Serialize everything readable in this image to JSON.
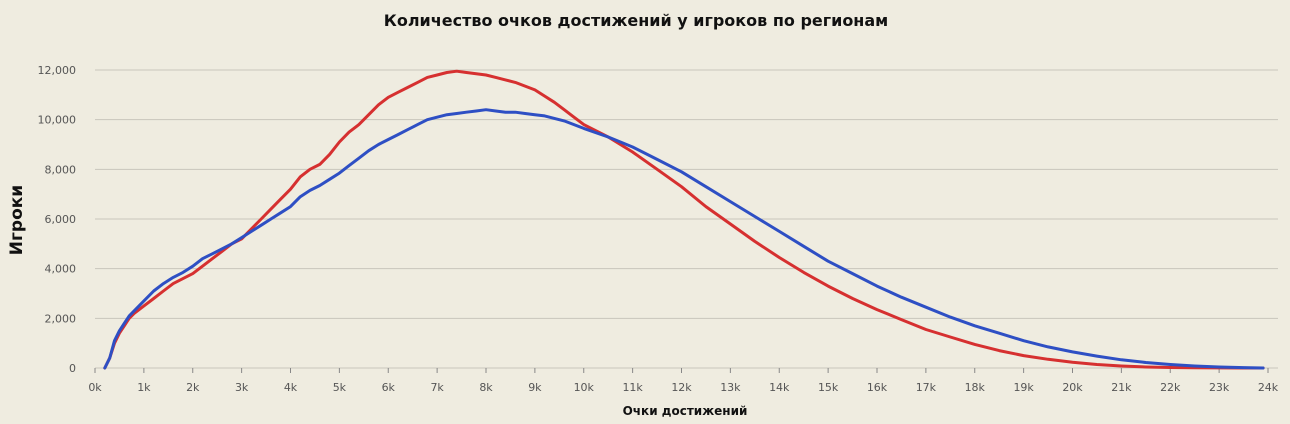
{
  "chart_data": {
    "type": "line",
    "title": "Количество очков достижений у игроков по регионам",
    "xlabel": "Очки достижений",
    "ylabel": "Игроки",
    "xlim": [
      0,
      24000
    ],
    "ylim": [
      0,
      12000
    ],
    "grid": true,
    "x_ticks": [
      "0k",
      "1k",
      "2k",
      "3k",
      "4k",
      "5k",
      "6k",
      "7k",
      "8k",
      "9k",
      "10k",
      "11k",
      "12k",
      "13k",
      "14k",
      "15k",
      "16k",
      "17k",
      "18k",
      "19k",
      "20k",
      "21k",
      "22k",
      "23k",
      "24k"
    ],
    "y_ticks": [
      "0",
      "2,000",
      "4,000",
      "6,000",
      "8,000",
      "10,000",
      "12,000"
    ],
    "x": [
      200,
      300,
      400,
      500,
      600,
      700,
      800,
      1000,
      1200,
      1400,
      1600,
      1800,
      2000,
      2200,
      2400,
      2600,
      2800,
      3000,
      3200,
      3400,
      3600,
      3800,
      4000,
      4200,
      4400,
      4600,
      4800,
      5000,
      5200,
      5400,
      5600,
      5800,
      6000,
      6200,
      6400,
      6600,
      6800,
      7000,
      7200,
      7400,
      7600,
      7800,
      8000,
      8200,
      8400,
      8600,
      8800,
      9000,
      9200,
      9400,
      9600,
      9800,
      10000,
      10500,
      11000,
      11500,
      12000,
      12500,
      13000,
      13500,
      14000,
      14500,
      15000,
      15500,
      16000,
      16500,
      17000,
      17500,
      18000,
      18500,
      19000,
      19500,
      20000,
      20500,
      21000,
      21500,
      22000,
      22500,
      23000,
      23500,
      23900
    ],
    "series": [
      {
        "color": "#d63030",
        "values": [
          0,
          400,
          1000,
          1400,
          1700,
          2000,
          2200,
          2500,
          2800,
          3100,
          3400,
          3600,
          3800,
          4100,
          4400,
          4700,
          5000,
          5200,
          5600,
          6000,
          6400,
          6800,
          7200,
          7700,
          8000,
          8200,
          8600,
          9100,
          9500,
          9800,
          10200,
          10600,
          10900,
          11100,
          11300,
          11500,
          11700,
          11800,
          11900,
          11950,
          11900,
          11850,
          11800,
          11700,
          11600,
          11500,
          11350,
          11200,
          10950,
          10700,
          10400,
          10100,
          9800,
          9300,
          8700,
          8000,
          7300,
          6500,
          5800,
          5100,
          4450,
          3850,
          3300,
          2800,
          2350,
          1950,
          1550,
          1250,
          950,
          700,
          500,
          350,
          230,
          140,
          80,
          40,
          20,
          10,
          5,
          2,
          0
        ]
      },
      {
        "color": "#2e4fc4",
        "values": [
          0,
          400,
          1100,
          1500,
          1800,
          2100,
          2300,
          2700,
          3100,
          3400,
          3650,
          3850,
          4100,
          4400,
          4600,
          4800,
          5000,
          5250,
          5500,
          5750,
          6000,
          6250,
          6500,
          6900,
          7150,
          7350,
          7600,
          7850,
          8150,
          8450,
          8750,
          9000,
          9200,
          9400,
          9600,
          9800,
          10000,
          10100,
          10200,
          10250,
          10300,
          10350,
          10400,
          10350,
          10300,
          10300,
          10250,
          10200,
          10150,
          10050,
          9950,
          9800,
          9650,
          9300,
          8900,
          8400,
          7900,
          7300,
          6700,
          6100,
          5500,
          4900,
          4300,
          3800,
          3300,
          2850,
          2450,
          2050,
          1700,
          1400,
          1100,
          850,
          650,
          480,
          330,
          220,
          140,
          80,
          40,
          15,
          0
        ]
      }
    ]
  }
}
